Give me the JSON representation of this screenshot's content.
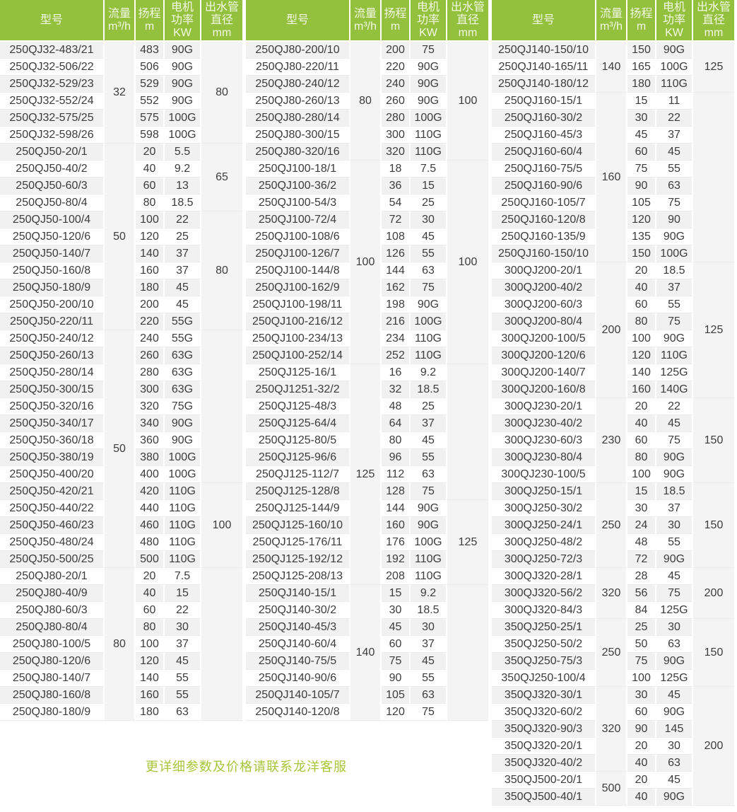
{
  "header_labels": {
    "model": [
      "型号"
    ],
    "flow": [
      "流量",
      "m³/h"
    ],
    "head": [
      "扬程",
      "m"
    ],
    "power": [
      "电机",
      "功率",
      "KW"
    ],
    "outlet": [
      "出水管",
      "直径",
      "mm"
    ]
  },
  "footer_note": "更详细参数及价格请联系龙洋客服",
  "colors": {
    "header_bg": "#93c03d",
    "header_text": "#f3f9e4",
    "row_alt": "#f1f1f1",
    "row_base": "#ffffff",
    "merged_bg": "#f4f4f4",
    "cell_text": "#3c3c3c",
    "note": "#a6c63c"
  },
  "tables": [
    {
      "name": "left",
      "rows": [
        {
          "model": "250QJ32-483/21",
          "head": "483",
          "power": "90G",
          "flow": [
            "32",
            6
          ],
          "outlet": [
            "80",
            6
          ]
        },
        {
          "model": "250QJ32-506/22",
          "head": "506",
          "power": "90G"
        },
        {
          "model": "250QJ32-529/23",
          "head": "529",
          "power": "90G"
        },
        {
          "model": "250QJ32-552/24",
          "head": "552",
          "power": "90G"
        },
        {
          "model": "250QJ32-575/25",
          "head": "575",
          "power": "100G"
        },
        {
          "model": "250QJ32-598/26",
          "head": "598",
          "power": "100G"
        },
        {
          "model": "250QJ50-20/1",
          "head": "20",
          "power": "5.5",
          "flow": [
            "50",
            11
          ],
          "outlet": [
            "65",
            4
          ]
        },
        {
          "model": "250QJ50-40/2",
          "head": "40",
          "power": "9.2"
        },
        {
          "model": "250QJ50-60/3",
          "head": "60",
          "power": "13"
        },
        {
          "model": "250QJ50-80/4",
          "head": "80",
          "power": "18.5"
        },
        {
          "model": "250QJ50-100/4",
          "head": "100",
          "power": "22",
          "outlet": [
            "80",
            7
          ]
        },
        {
          "model": "250QJ50-120/6",
          "head": "120",
          "power": "25"
        },
        {
          "model": "250QJ50-140/7",
          "head": "140",
          "power": "37"
        },
        {
          "model": "250QJ50-160/8",
          "head": "160",
          "power": "37"
        },
        {
          "model": "250QJ50-180/9",
          "head": "180",
          "power": "45"
        },
        {
          "model": "250QJ50-200/10",
          "head": "200",
          "power": "45"
        },
        {
          "model": "250QJ50-220/11",
          "head": "220",
          "power": "55G"
        },
        {
          "model": "250QJ50-240/12",
          "head": "240",
          "power": "55G",
          "flow": [
            "50",
            14
          ],
          "outlet": [
            "",
            9
          ]
        },
        {
          "model": "250QJ50-260/13",
          "head": "260",
          "power": "63G"
        },
        {
          "model": "250QJ50-280/14",
          "head": "280",
          "power": "63G"
        },
        {
          "model": "250QJ50-300/15",
          "head": "300",
          "power": "63G"
        },
        {
          "model": "250QJ50-320/16",
          "head": "320",
          "power": "75G"
        },
        {
          "model": "250QJ50-340/17",
          "head": "340",
          "power": "90G"
        },
        {
          "model": "250QJ50-360/18",
          "head": "360",
          "power": "90G"
        },
        {
          "model": "250QJ50-380/19",
          "head": "380",
          "power": "100G"
        },
        {
          "model": "250QJ50-400/20",
          "head": "400",
          "power": "100G"
        },
        {
          "model": "250QJ50-420/21",
          "head": "420",
          "power": "110G",
          "outlet": [
            "100",
            5
          ]
        },
        {
          "model": "250QJ50-440/22",
          "head": "440",
          "power": "110G"
        },
        {
          "model": "250QJ50-460/23",
          "head": "460",
          "power": "110G"
        },
        {
          "model": "250QJ50-480/24",
          "head": "480",
          "power": "110G"
        },
        {
          "model": "250QJ50-500/25",
          "head": "500",
          "power": "110G"
        },
        {
          "model": "250QJ80-20/1",
          "head": "20",
          "power": "7.5",
          "flow": [
            "80",
            9
          ],
          "outlet": [
            "",
            9
          ]
        },
        {
          "model": "250QJ80-40/9",
          "head": "40",
          "power": "15"
        },
        {
          "model": "250QJ80-60/3",
          "head": "60",
          "power": "22"
        },
        {
          "model": "250QJ80-80/4",
          "head": "80",
          "power": "30"
        },
        {
          "model": "250QJ80-100/5",
          "head": "100",
          "power": "37"
        },
        {
          "model": "250QJ80-120/6",
          "head": "120",
          "power": "45"
        },
        {
          "model": "250QJ80-140/7",
          "head": "140",
          "power": "55"
        },
        {
          "model": "250QJ80-160/8",
          "head": "160",
          "power": "55"
        },
        {
          "model": "250QJ80-180/9",
          "head": "180",
          "power": "63"
        }
      ]
    },
    {
      "name": "middle",
      "rows": [
        {
          "model": "250QJ80-200/10",
          "head": "200",
          "power": "75",
          "flow": [
            "80",
            7
          ],
          "outlet": [
            "100",
            7
          ]
        },
        {
          "model": "250QJ80-220/11",
          "head": "220",
          "power": "90G"
        },
        {
          "model": "250QJ80-240/12",
          "head": "240",
          "power": "90G"
        },
        {
          "model": "250QJ80-260/13",
          "head": "260",
          "power": "90G"
        },
        {
          "model": "250QJ80-280/14",
          "head": "280",
          "power": "100G"
        },
        {
          "model": "250QJ80-300/15",
          "head": "300",
          "power": "110G"
        },
        {
          "model": "250QJ80-320/16",
          "head": "320",
          "power": "110G"
        },
        {
          "model": "250QJ100-18/1",
          "head": "18",
          "power": "7.5",
          "flow": [
            "100",
            12
          ],
          "outlet": [
            "100",
            12
          ]
        },
        {
          "model": "250QJ100-36/2",
          "head": "36",
          "power": "15"
        },
        {
          "model": "250QJ100-54/3",
          "head": "54",
          "power": "25"
        },
        {
          "model": "250QJ100-72/4",
          "head": "72",
          "power": "30"
        },
        {
          "model": "250QJ100-108/6",
          "head": "108",
          "power": "45"
        },
        {
          "model": "250QJ100-126/7",
          "head": "126",
          "power": "55"
        },
        {
          "model": "250QJ100-144/8",
          "head": "144",
          "power": "63"
        },
        {
          "model": "250QJ100-162/9",
          "head": "162",
          "power": "75"
        },
        {
          "model": "250QJ100-198/11",
          "head": "198",
          "power": "90G"
        },
        {
          "model": "250QJ100-216/12",
          "head": "216",
          "power": "100G"
        },
        {
          "model": "250QJ100-234/13",
          "head": "234",
          "power": "110G"
        },
        {
          "model": "250QJ100-252/14",
          "head": "252",
          "power": "110G"
        },
        {
          "model": "250QJ125-16/1",
          "head": "16",
          "power": "9.2",
          "flow": [
            "125",
            13
          ],
          "outlet": [
            "",
            8
          ]
        },
        {
          "model": "250QJ1251-32/2",
          "head": "32",
          "power": "18.5"
        },
        {
          "model": "250QJ125-48/3",
          "head": "48",
          "power": "25"
        },
        {
          "model": "250QJ125-64/4",
          "head": "64",
          "power": "37"
        },
        {
          "model": "250QJ125-80/5",
          "head": "80",
          "power": "45"
        },
        {
          "model": "250QJ125-96/6",
          "head": "96",
          "power": "55"
        },
        {
          "model": "250QJ125-112/7",
          "head": "112",
          "power": "63"
        },
        {
          "model": "250QJ125-128/8",
          "head": "128",
          "power": "75"
        },
        {
          "model": "250QJ125-144/9",
          "head": "144",
          "power": "90G",
          "outlet": [
            "125",
            5
          ]
        },
        {
          "model": "250QJ125-160/10",
          "head": "160",
          "power": "90G"
        },
        {
          "model": "250QJ125-176/11",
          "head": "176",
          "power": "100G"
        },
        {
          "model": "250QJ125-192/12",
          "head": "192",
          "power": "110G"
        },
        {
          "model": "250QJ125-208/13",
          "head": "208",
          "power": "110G"
        },
        {
          "model": "250QJ140-15/1",
          "head": "15",
          "power": "9.2",
          "flow": [
            "140",
            8
          ],
          "outlet": [
            "",
            8
          ]
        },
        {
          "model": "250QJ140-30/2",
          "head": "30",
          "power": "18.5"
        },
        {
          "model": "250QJ140-45/3",
          "head": "45",
          "power": "30"
        },
        {
          "model": "250QJ140-60/4",
          "head": "60",
          "power": "37"
        },
        {
          "model": "250QJ140-75/5",
          "head": "75",
          "power": "45"
        },
        {
          "model": "250QJ140-90/6",
          "head": "90",
          "power": "55"
        },
        {
          "model": "250QJ140-105/7",
          "head": "105",
          "power": "63"
        },
        {
          "model": "250QJ140-120/8",
          "head": "120",
          "power": "75"
        }
      ]
    },
    {
      "name": "right",
      "rows": [
        {
          "model": "250QJ140-150/10",
          "head": "150",
          "power": "90G",
          "flow": [
            "140",
            3
          ],
          "outlet": [
            "125",
            3
          ]
        },
        {
          "model": "250QJ140-165/11",
          "head": "165",
          "power": "100G"
        },
        {
          "model": "250QJ140-180/12",
          "head": "180",
          "power": "110G"
        },
        {
          "model": "250QJ160-15/1",
          "head": "15",
          "power": "11",
          "flow": [
            "160",
            10
          ],
          "outlet": [
            "",
            10
          ]
        },
        {
          "model": "250QJ160-30/2",
          "head": "30",
          "power": "22"
        },
        {
          "model": "250QJ160-45/3",
          "head": "45",
          "power": "37"
        },
        {
          "model": "250QJ160-60/4",
          "head": "60",
          "power": "45"
        },
        {
          "model": "250QJ160-75/5",
          "head": "75",
          "power": "55"
        },
        {
          "model": "250QJ160-90/6",
          "head": "90",
          "power": "63"
        },
        {
          "model": "250QJ160-105/7",
          "head": "105",
          "power": "75"
        },
        {
          "model": "250QJ160-120/8",
          "head": "120",
          "power": "90"
        },
        {
          "model": "250QJ160-135/9",
          "head": "135",
          "power": "90G"
        },
        {
          "model": "250QJ160-150/10",
          "head": "150",
          "power": "100G"
        },
        {
          "model": "300QJ200-20/1",
          "head": "20",
          "power": "18.5",
          "flow": [
            "200",
            8
          ],
          "outlet": [
            "125",
            8
          ]
        },
        {
          "model": "300QJ200-40/2",
          "head": "40",
          "power": "37"
        },
        {
          "model": "300QJ200-60/3",
          "head": "60",
          "power": "55"
        },
        {
          "model": "300QJ200-80/4",
          "head": "80",
          "power": "75"
        },
        {
          "model": "300QJ200-100/5",
          "head": "100",
          "power": "90G"
        },
        {
          "model": "300QJ200-120/6",
          "head": "120",
          "power": "110G"
        },
        {
          "model": "300QJ200-140/7",
          "head": "140",
          "power": "125G"
        },
        {
          "model": "300QJ200-160/8",
          "head": "160",
          "power": "140G"
        },
        {
          "model": "300QJ230-20/1",
          "head": "20",
          "power": "22",
          "flow": [
            "230",
            5
          ],
          "outlet": [
            "150",
            5
          ]
        },
        {
          "model": "300QJ230-40/2",
          "head": "40",
          "power": "45"
        },
        {
          "model": "300QJ230-60/3",
          "head": "60",
          "power": "75"
        },
        {
          "model": "300QJ230-80/4",
          "head": "80",
          "power": "90G"
        },
        {
          "model": "300QJ230-100/5",
          "head": "100",
          "power": "90G"
        },
        {
          "model": "300QJ250-15/1",
          "head": "15",
          "power": "18.5",
          "flow": [
            "250",
            5
          ],
          "outlet": [
            "150",
            5
          ]
        },
        {
          "model": "300QJ250-30/2",
          "head": "30",
          "power": "37"
        },
        {
          "model": "300QJ250-24/1",
          "head": "24",
          "power": "30"
        },
        {
          "model": "300QJ250-48/2",
          "head": "48",
          "power": "55"
        },
        {
          "model": "300QJ250-72/3",
          "head": "72",
          "power": "90G"
        },
        {
          "model": "300QJ320-28/1",
          "head": "28",
          "power": "45",
          "flow": [
            "320",
            3
          ],
          "outlet": [
            "200",
            3
          ]
        },
        {
          "model": "300QJ320-56/2",
          "head": "56",
          "power": "75"
        },
        {
          "model": "300QJ320-84/3",
          "head": "84",
          "power": "125G"
        },
        {
          "model": "350QJ250-25/1",
          "head": "25",
          "power": "30",
          "flow": [
            "250",
            4
          ],
          "outlet": [
            "150",
            4
          ]
        },
        {
          "model": "350QJ250-50/2",
          "head": "50",
          "power": "63"
        },
        {
          "model": "350QJ250-75/3",
          "head": "75",
          "power": "90G"
        },
        {
          "model": "350QJ250-100/4",
          "head": "100",
          "power": "125G"
        },
        {
          "model": "350QJ320-30/1",
          "head": "30",
          "power": "45",
          "flow": [
            "320",
            5
          ],
          "outlet": [
            "200",
            7
          ]
        },
        {
          "model": "350QJ320-60/2",
          "head": "60",
          "power": "90G"
        },
        {
          "model": "350QJ320-90/3",
          "head": "90",
          "power": "145"
        },
        {
          "model": "350QJ320-20/1",
          "head": "20",
          "power": "30"
        },
        {
          "model": "350QJ320-40/2",
          "head": "40",
          "power": "63"
        },
        {
          "model": "350QJ500-20/1",
          "head": "20",
          "power": "45",
          "flow": [
            "500",
            2
          ]
        },
        {
          "model": "350QJ500-40/1",
          "head": "40",
          "power": "90G"
        }
      ]
    }
  ]
}
